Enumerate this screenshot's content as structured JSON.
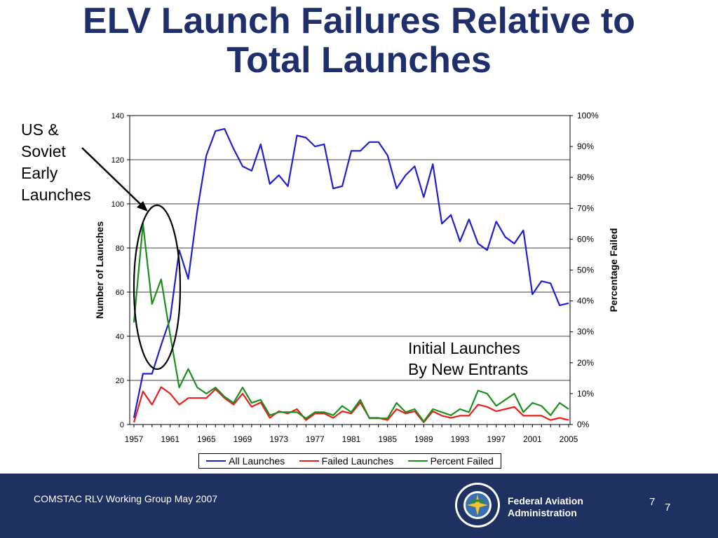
{
  "slide": {
    "title_line1": "ELV Launch Failures Relative to",
    "title_line2": "Total Launches",
    "side_label": [
      "US &",
      "Soviet",
      "Early",
      "Launches"
    ],
    "callout": [
      "Initial Launches",
      "By New Entrants"
    ]
  },
  "footer": {
    "left_text": "COMSTAC RLV Working Group  May 2007",
    "org_line1": "Federal Aviation",
    "org_line2": "Administration",
    "page_a": "7",
    "page_b": "7",
    "seal_icon": "faa-seal-icon",
    "background": "#1e3161"
  },
  "chart_data": {
    "type": "line",
    "xlabel": "",
    "ylabel": "Number of Launches",
    "y2label": "Percentage Failed",
    "ylim": [
      0,
      140
    ],
    "y2lim": [
      0,
      100
    ],
    "yticks": [
      0,
      20,
      40,
      60,
      80,
      100,
      120,
      140
    ],
    "y2ticks": [
      "0%",
      "10%",
      "20%",
      "30%",
      "40%",
      "50%",
      "60%",
      "70%",
      "80%",
      "90%",
      "100%"
    ],
    "xtick_labels": [
      "1957",
      "1961",
      "1965",
      "1969",
      "1973",
      "1977",
      "1981",
      "1985",
      "1989",
      "1993",
      "1997",
      "2001",
      "2005"
    ],
    "x": [
      1957,
      1958,
      1959,
      1960,
      1961,
      1962,
      1963,
      1964,
      1965,
      1966,
      1967,
      1968,
      1969,
      1970,
      1971,
      1972,
      1973,
      1974,
      1975,
      1976,
      1977,
      1978,
      1979,
      1980,
      1981,
      1982,
      1983,
      1984,
      1985,
      1986,
      1987,
      1988,
      1989,
      1990,
      1991,
      1992,
      1993,
      1994,
      1995,
      1996,
      1997,
      1998,
      1999,
      2000,
      2001,
      2002,
      2003,
      2004,
      2005
    ],
    "grid": "horizontal",
    "legend_position": "bottom",
    "series": [
      {
        "name": "All Launches",
        "axis": "left",
        "color": "#1f1fd0",
        "values": [
          3,
          23,
          23,
          36,
          48,
          79,
          66,
          97,
          122,
          133,
          134,
          125,
          117,
          115,
          127,
          109,
          113,
          108,
          131,
          130,
          126,
          127,
          107,
          108,
          124,
          124,
          128,
          128,
          122,
          107,
          113,
          117,
          103,
          118,
          91,
          95,
          83,
          93,
          82,
          79,
          92,
          85,
          82,
          88,
          59,
          65,
          64,
          54,
          55
        ]
      },
      {
        "name": "Failed Launches",
        "axis": "left",
        "color": "#e8201c",
        "values": [
          1,
          15,
          9,
          17,
          14,
          9,
          12,
          12,
          12,
          16,
          12,
          9,
          14,
          8,
          10,
          3,
          6,
          5,
          7,
          2,
          5,
          5,
          3,
          6,
          5,
          10,
          3,
          3,
          2,
          7,
          5,
          6,
          1,
          6,
          4,
          3,
          4,
          4,
          9,
          8,
          6,
          7,
          8,
          4,
          4,
          4,
          2,
          3,
          2
        ]
      },
      {
        "name": "Percent Failed",
        "axis": "right",
        "color": "#1a8f1a",
        "values": [
          33,
          65,
          39,
          47,
          29,
          12,
          18,
          12,
          10,
          12,
          9,
          7,
          12,
          7,
          8,
          3,
          4,
          4,
          4,
          2,
          4,
          4,
          3,
          6,
          4,
          8,
          2,
          2,
          2,
          7,
          4,
          5,
          1,
          5,
          4,
          3,
          5,
          4,
          11,
          10,
          6,
          8,
          10,
          4,
          7,
          6,
          3,
          7,
          5
        ]
      }
    ],
    "annotations": [
      "US & Soviet Early Launches",
      "Initial Launches By New Entrants"
    ]
  }
}
